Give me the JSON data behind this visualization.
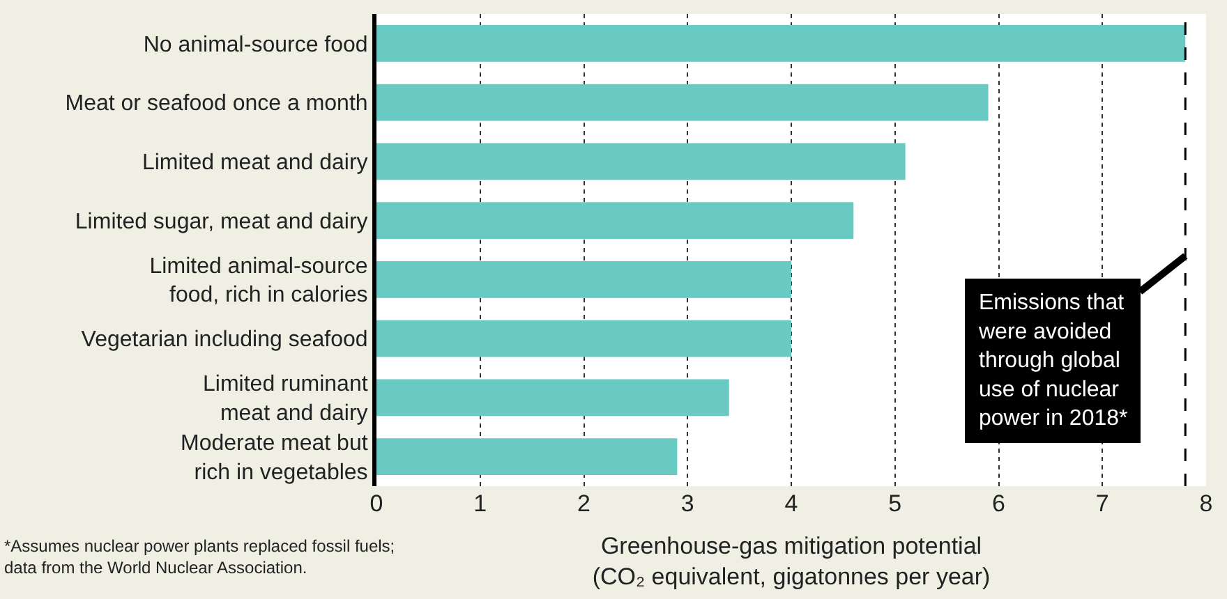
{
  "chart_data": {
    "type": "bar",
    "orientation": "horizontal",
    "categories": [
      "No animal-source food",
      "Meat or seafood once a month",
      "Limited meat and dairy",
      "Limited sugar, meat and dairy",
      "Limited animal-source\nfood, rich in calories",
      "Vegetarian including seafood",
      "Limited ruminant\nmeat and dairy",
      "Moderate meat but\nrich in vegetables"
    ],
    "values": [
      7.8,
      5.9,
      5.1,
      4.6,
      4.0,
      4.0,
      3.4,
      2.9
    ],
    "color": "#69c9c3",
    "xlim": [
      0,
      8
    ],
    "xticks": [
      0,
      1,
      2,
      3,
      4,
      5,
      6,
      7,
      8
    ],
    "xlabel": "Greenhouse-gas mitigation potential\n(CO₂ equivalent, gigatonnes per year)",
    "grid": "x",
    "ref_lines": [
      {
        "axis": "x",
        "value": 7.8,
        "label": "Emissions that\nwere avoided\nthrough global\nuse of nuclear\npower in 2018*",
        "color": "#000000",
        "line_style": "dashed"
      }
    ],
    "annotations": [
      "*Assumes nuclear power plants replaced fossil fuels;\ndata from the World Nuclear Association."
    ]
  }
}
